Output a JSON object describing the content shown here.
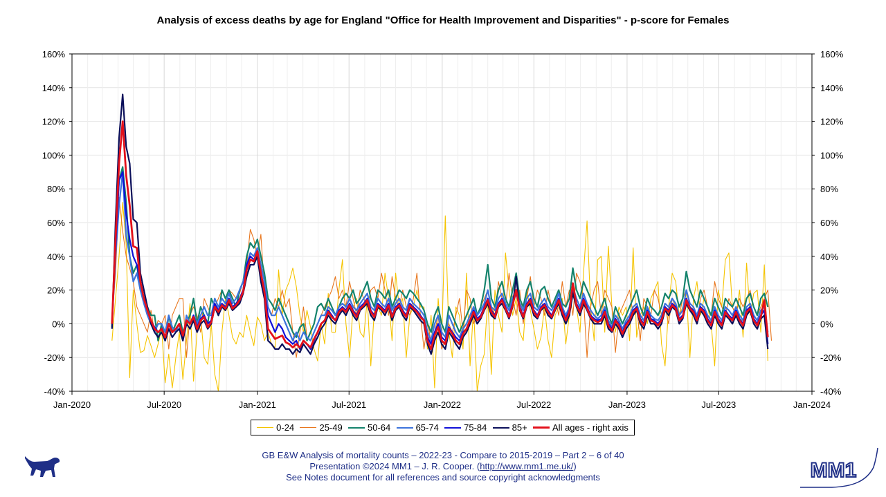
{
  "colors": {
    "s0_24": "#f5c400",
    "s25_49": "#e8761d",
    "s50_64": "#14836c",
    "s65_74": "#3c73dc",
    "s75_84": "#1010d8",
    "s85p": "#0b0f5a",
    "all": "#e3101b",
    "footer": "#1f2f87"
  },
  "footer": {
    "line1": "GB E&W Analysis of mortality counts – 2022-23 - Compare to 2015-2019 – Part 2 – 6 of 40",
    "line2_prefix": "Presentation ©2024 MM1 – J. R. Cooper. (",
    "line2_link": "http://www.mm1.me.uk/",
    "line2_suffix": ")",
    "line3": "See Notes document for all references and source copyright acknowledgments"
  },
  "logo": {
    "text": "MM1"
  },
  "chart_data": {
    "type": "line",
    "title": "Analysis of excess deaths by age for England \"Office for Health Improvement and Disparities\" - p-score for Females",
    "x_start": "2020-03-20",
    "x_step_days": 7,
    "x_ticks": [
      "Jan-2020",
      "Jul-2020",
      "Jan-2021",
      "Jul-2021",
      "Jan-2022",
      "Jul-2022",
      "Jan-2023",
      "Jul-2023",
      "Jan-2024"
    ],
    "xlim": [
      "2020-01-01",
      "2024-01-01"
    ],
    "ylim": [
      -40,
      160
    ],
    "y_ticks": [
      "-40%",
      "-20%",
      "0%",
      "20%",
      "40%",
      "60%",
      "80%",
      "100%",
      "120%",
      "140%",
      "160%"
    ],
    "y_ticks_right": [
      "-40%",
      "-20%",
      "0%",
      "20%",
      "40%",
      "60%",
      "80%",
      "100%",
      "120%",
      "140%",
      "160%"
    ],
    "grid": true,
    "legend_position": "bottom",
    "series": [
      {
        "name": "0-24",
        "values": [
          -10,
          15,
          40,
          72,
          47,
          -32,
          20,
          0,
          -17,
          -16,
          -7,
          -13,
          -20,
          -12,
          -3,
          -35,
          -18,
          -38,
          -20,
          -5,
          -33,
          -10,
          12,
          -34,
          -5,
          5,
          -20,
          -24,
          0,
          -30,
          -40,
          -5,
          15,
          5,
          -8,
          -12,
          -5,
          -8,
          5,
          -5,
          -13,
          4,
          0,
          -10,
          -5,
          -12,
          -14,
          32,
          5,
          20,
          25,
          33,
          22,
          5,
          -5,
          8,
          -2,
          -15,
          -22,
          0,
          -12,
          18,
          -5,
          -5,
          20,
          38,
          0,
          -20,
          10,
          15,
          -5,
          -8,
          15,
          -25,
          8,
          10,
          5,
          30,
          15,
          -10,
          30,
          10,
          15,
          -20,
          5,
          10,
          20,
          10,
          10,
          -15,
          5,
          -38,
          15,
          -10,
          64,
          -5,
          -20,
          10,
          5,
          -15,
          30,
          -25,
          10,
          -40,
          -25,
          -18,
          15,
          -30,
          20,
          5,
          -5,
          42,
          20,
          5,
          15,
          -5,
          -10,
          20,
          8,
          -3,
          -15,
          -8,
          10,
          -10,
          -20,
          5,
          10,
          15,
          -12,
          5,
          20,
          10,
          -5,
          30,
          61,
          10,
          -10,
          38,
          40,
          -5,
          46,
          10,
          -5,
          10,
          5,
          10,
          -10,
          45,
          -8,
          5,
          10,
          0,
          15,
          20,
          25,
          -12,
          -25,
          10,
          30,
          25,
          5,
          10,
          20,
          -20,
          15,
          25,
          5,
          15,
          10,
          0,
          -25,
          20,
          10,
          38,
          42,
          10,
          5,
          20,
          -8,
          36,
          5,
          18,
          20,
          -5,
          35,
          -22
        ]
      },
      {
        "name": "25-49",
        "values": [
          2,
          30,
          75,
          55,
          40,
          33,
          25,
          10,
          5,
          0,
          -5,
          8,
          -5,
          2,
          0,
          5,
          -15,
          5,
          10,
          15,
          15,
          -20,
          5,
          10,
          5,
          -5,
          15,
          10,
          5,
          10,
          15,
          20,
          15,
          20,
          18,
          15,
          18,
          25,
          35,
          56,
          50,
          40,
          53,
          20,
          10,
          5,
          15,
          10,
          20,
          10,
          15,
          -5,
          -20,
          -5,
          10,
          -8,
          -10,
          -5,
          0,
          5,
          10,
          15,
          20,
          28,
          15,
          20,
          10,
          25,
          15,
          5,
          20,
          15,
          10,
          20,
          22,
          15,
          30,
          20,
          5,
          28,
          15,
          10,
          20,
          10,
          5,
          15,
          30,
          5,
          -15,
          0,
          -10,
          -5,
          5,
          -15,
          -10,
          0,
          -5,
          5,
          15,
          -5,
          20,
          15,
          0,
          5,
          10,
          15,
          20,
          10,
          5,
          25,
          15,
          10,
          30,
          15,
          5,
          20,
          0,
          15,
          28,
          10,
          20,
          15,
          5,
          20,
          10,
          15,
          5,
          25,
          10,
          20,
          5,
          30,
          25,
          15,
          -20,
          10,
          20,
          25,
          5,
          20,
          15,
          10,
          -17,
          5,
          10,
          15,
          20,
          5,
          10,
          -10,
          15,
          10,
          5,
          20,
          15,
          5,
          10,
          0,
          15,
          10,
          5,
          15,
          20,
          10,
          5,
          0,
          15,
          20,
          10,
          5,
          25,
          15,
          10,
          5,
          15,
          10,
          5,
          15,
          10,
          15,
          20,
          10,
          5,
          10,
          15,
          20,
          -10
        ]
      },
      {
        "name": "50-64",
        "values": [
          -2,
          55,
          85,
          93,
          72,
          40,
          30,
          35,
          20,
          15,
          10,
          5,
          5,
          -10,
          0,
          -10,
          5,
          -5,
          0,
          5,
          -5,
          0,
          5,
          15,
          0,
          10,
          5,
          0,
          15,
          10,
          5,
          20,
          15,
          20,
          15,
          10,
          20,
          25,
          40,
          48,
          45,
          50,
          40,
          30,
          15,
          12,
          8,
          15,
          10,
          5,
          0,
          -5,
          -8,
          -2,
          0,
          -10,
          -5,
          0,
          10,
          12,
          8,
          15,
          10,
          5,
          10,
          15,
          18,
          15,
          20,
          12,
          15,
          20,
          25,
          15,
          10,
          20,
          18,
          15,
          20,
          10,
          15,
          20,
          18,
          15,
          20,
          18,
          15,
          12,
          8,
          0,
          -5,
          5,
          10,
          0,
          -5,
          10,
          5,
          0,
          -5,
          0,
          5,
          10,
          15,
          5,
          10,
          20,
          35,
          15,
          10,
          20,
          25,
          15,
          10,
          20,
          30,
          15,
          10,
          20,
          25,
          15,
          10,
          20,
          22,
          15,
          10,
          15,
          20,
          12,
          10,
          15,
          33,
          20,
          15,
          25,
          20,
          15,
          10,
          5,
          10,
          15,
          5,
          0,
          10,
          5,
          0,
          5,
          10,
          15,
          20,
          10,
          5,
          15,
          10,
          8,
          5,
          10,
          18,
          15,
          20,
          18,
          10,
          15,
          31,
          20,
          15,
          10,
          20,
          15,
          10,
          5,
          15,
          10,
          5,
          15,
          12,
          10,
          15,
          10,
          5,
          15,
          18,
          10,
          5,
          15,
          18,
          10
        ]
      },
      {
        "name": "65-74",
        "values": [
          0,
          40,
          70,
          90,
          52,
          40,
          25,
          30,
          20,
          12,
          5,
          0,
          -5,
          0,
          0,
          -5,
          5,
          -2,
          -5,
          0,
          -10,
          5,
          0,
          5,
          0,
          5,
          10,
          5,
          5,
          15,
          10,
          15,
          12,
          18,
          12,
          15,
          20,
          25,
          35,
          42,
          40,
          45,
          35,
          25,
          10,
          5,
          5,
          10,
          5,
          0,
          -5,
          -10,
          -5,
          -10,
          -5,
          -8,
          -10,
          -5,
          0,
          5,
          5,
          10,
          8,
          5,
          10,
          12,
          10,
          15,
          10,
          8,
          12,
          15,
          18,
          10,
          8,
          15,
          12,
          10,
          15,
          8,
          12,
          15,
          10,
          8,
          15,
          12,
          10,
          8,
          5,
          -5,
          -10,
          0,
          5,
          -5,
          -8,
          5,
          0,
          -5,
          -8,
          -3,
          0,
          5,
          10,
          5,
          8,
          12,
          20,
          10,
          8,
          15,
          18,
          12,
          8,
          15,
          20,
          12,
          8,
          15,
          18,
          10,
          8,
          12,
          15,
          10,
          8,
          12,
          18,
          10,
          5,
          10,
          22,
          15,
          10,
          18,
          12,
          8,
          5,
          3,
          5,
          10,
          2,
          -2,
          5,
          2,
          -3,
          2,
          5,
          10,
          12,
          5,
          2,
          10,
          5,
          3,
          2,
          5,
          12,
          10,
          15,
          12,
          5,
          8,
          20,
          12,
          10,
          5,
          12,
          10,
          5,
          2,
          10,
          5,
          2,
          10,
          8,
          5,
          10,
          5,
          2,
          10,
          12,
          5,
          2,
          8,
          10,
          -5
        ]
      },
      {
        "name": "75-84",
        "values": [
          0,
          45,
          85,
          90,
          65,
          50,
          40,
          35,
          25,
          15,
          8,
          2,
          -2,
          -5,
          -3,
          -8,
          0,
          -5,
          -3,
          0,
          -8,
          2,
          0,
          5,
          -2,
          3,
          5,
          0,
          2,
          12,
          8,
          12,
          10,
          15,
          10,
          12,
          15,
          20,
          35,
          40,
          38,
          42,
          30,
          20,
          5,
          0,
          -5,
          0,
          -3,
          -8,
          -10,
          -12,
          -10,
          -15,
          -10,
          -12,
          -15,
          -10,
          -5,
          0,
          2,
          8,
          5,
          2,
          8,
          10,
          8,
          12,
          8,
          5,
          10,
          12,
          15,
          8,
          5,
          12,
          10,
          8,
          12,
          5,
          10,
          12,
          8,
          5,
          12,
          10,
          8,
          5,
          2,
          -8,
          -12,
          -5,
          0,
          -8,
          -10,
          -2,
          -5,
          -8,
          -10,
          -5,
          -3,
          2,
          8,
          3,
          5,
          10,
          15,
          8,
          5,
          12,
          15,
          10,
          5,
          12,
          18,
          10,
          5,
          12,
          15,
          8,
          5,
          10,
          12,
          8,
          5,
          10,
          15,
          8,
          3,
          8,
          20,
          12,
          8,
          15,
          10,
          5,
          3,
          2,
          3,
          8,
          0,
          -3,
          3,
          0,
          -5,
          0,
          3,
          8,
          10,
          3,
          0,
          8,
          3,
          2,
          0,
          3,
          10,
          8,
          12,
          10,
          3,
          5,
          15,
          10,
          8,
          3,
          10,
          8,
          3,
          0,
          8,
          3,
          0,
          8,
          5,
          3,
          8,
          3,
          0,
          8,
          10,
          3,
          0,
          5,
          8,
          -12
        ]
      },
      {
        "name": "85+",
        "values": [
          -3,
          60,
          110,
          136,
          105,
          95,
          62,
          60,
          30,
          20,
          10,
          0,
          -5,
          -8,
          -5,
          -10,
          -3,
          -8,
          -5,
          -3,
          -10,
          0,
          -3,
          2,
          -5,
          0,
          2,
          -3,
          0,
          10,
          5,
          10,
          8,
          12,
          8,
          10,
          12,
          18,
          28,
          35,
          35,
          40,
          25,
          15,
          -10,
          -12,
          -15,
          -15,
          -12,
          -15,
          -15,
          -18,
          -15,
          -17,
          -12,
          -15,
          -18,
          -12,
          -8,
          -3,
          0,
          5,
          2,
          0,
          5,
          8,
          5,
          10,
          5,
          2,
          8,
          10,
          12,
          5,
          2,
          10,
          8,
          5,
          10,
          2,
          8,
          10,
          5,
          2,
          10,
          8,
          5,
          2,
          0,
          -12,
          -18,
          -10,
          -5,
          -12,
          -15,
          -5,
          -8,
          -12,
          -15,
          -8,
          -5,
          0,
          5,
          0,
          3,
          8,
          12,
          5,
          3,
          10,
          12,
          8,
          3,
          10,
          28,
          8,
          3,
          10,
          12,
          5,
          3,
          8,
          10,
          5,
          3,
          8,
          12,
          5,
          0,
          5,
          18,
          10,
          5,
          12,
          8,
          3,
          0,
          0,
          0,
          5,
          -3,
          -5,
          0,
          -3,
          -8,
          -3,
          0,
          5,
          8,
          0,
          -3,
          5,
          0,
          0,
          -3,
          0,
          8,
          5,
          10,
          8,
          0,
          3,
          12,
          8,
          5,
          0,
          8,
          5,
          0,
          -3,
          5,
          0,
          -3,
          5,
          3,
          0,
          5,
          0,
          -3,
          5,
          8,
          0,
          -3,
          3,
          5,
          -15
        ]
      },
      {
        "name": "All ages - right axis",
        "values": [
          0,
          50,
          95,
          120,
          88,
          70,
          46,
          45,
          25,
          15,
          8,
          2,
          -3,
          -5,
          -3,
          -8,
          0,
          -5,
          -3,
          0,
          -7,
          2,
          0,
          4,
          -3,
          2,
          4,
          -2,
          1,
          10,
          7,
          11,
          9,
          14,
          9,
          11,
          14,
          19,
          32,
          38,
          37,
          43,
          30,
          19,
          -3,
          -6,
          -9,
          -8,
          -7,
          -11,
          -12,
          -14,
          -12,
          -14,
          -10,
          -12,
          -14,
          -9,
          -5,
          0,
          2,
          7,
          4,
          2,
          7,
          9,
          7,
          11,
          7,
          4,
          9,
          11,
          14,
          7,
          4,
          11,
          9,
          7,
          11,
          4,
          9,
          11,
          7,
          4,
          11,
          9,
          7,
          4,
          2,
          -10,
          -15,
          -7,
          -2,
          -10,
          -12,
          -3,
          -6,
          -10,
          -12,
          -6,
          -3,
          2,
          7,
          2,
          4,
          9,
          14,
          7,
          4,
          11,
          14,
          9,
          4,
          11,
          20,
          9,
          4,
          11,
          14,
          7,
          4,
          9,
          11,
          7,
          4,
          9,
          14,
          7,
          2,
          7,
          24,
          11,
          7,
          14,
          9,
          4,
          2,
          1,
          2,
          7,
          -1,
          -4,
          2,
          -1,
          -6,
          -1,
          2,
          7,
          9,
          2,
          -1,
          7,
          2,
          1,
          -1,
          2,
          9,
          7,
          11,
          9,
          2,
          4,
          14,
          9,
          7,
          2,
          9,
          7,
          2,
          -1,
          7,
          2,
          -1,
          7,
          4,
          2,
          7,
          2,
          -1,
          7,
          9,
          2,
          -1,
          4,
          14,
          -8
        ]
      }
    ]
  }
}
